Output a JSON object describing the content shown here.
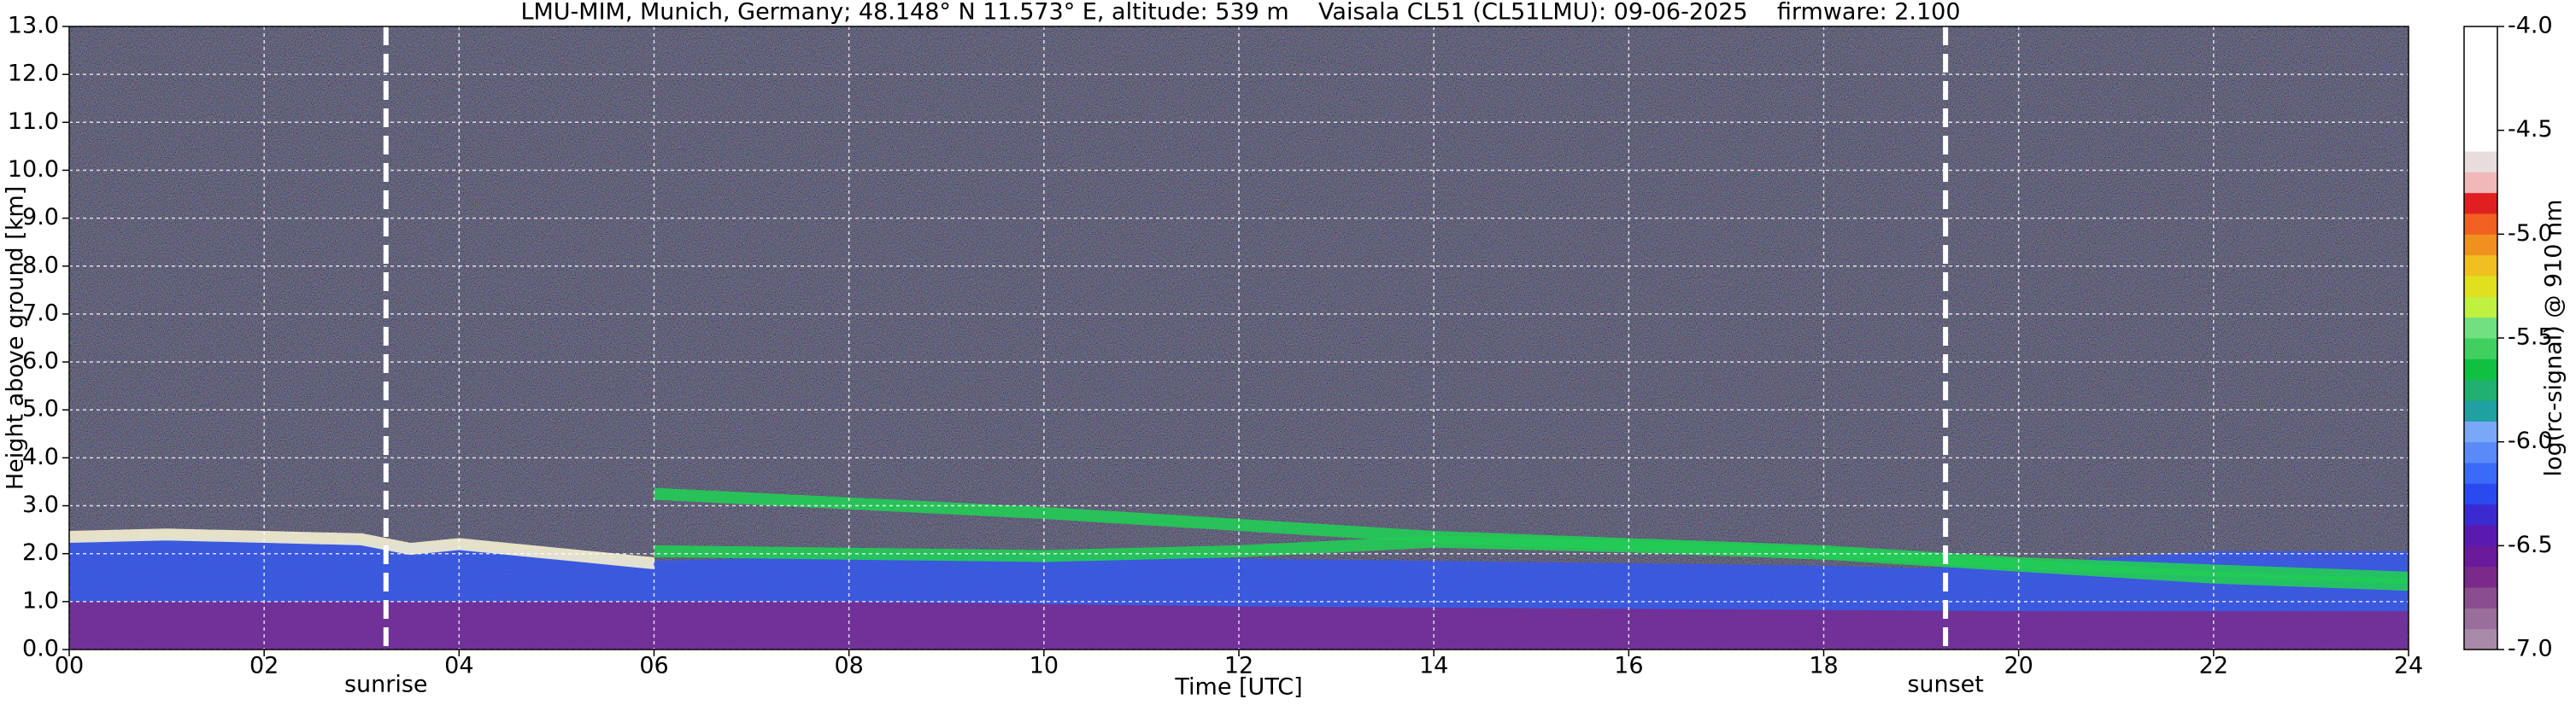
{
  "chart_data": {
    "type": "ceilometer",
    "title": "LMU-MIM, Munich, Germany; 48.148° N 11.573° E, altitude: 539 m    Vaisala CL51 (CL51LMU): 09-06-2025    firmware: 2.100",
    "x_label": "Time [UTC]",
    "y_label": "Height above ground [km]",
    "xlim": [
      0,
      24
    ],
    "ylim": [
      0,
      13
    ],
    "xticks": [
      {
        "value": 0,
        "label": "00"
      },
      {
        "value": 2,
        "label": "02"
      },
      {
        "value": 4,
        "label": "04"
      },
      {
        "value": 6,
        "label": "06"
      },
      {
        "value": 8,
        "label": "08"
      },
      {
        "value": 10,
        "label": "10"
      },
      {
        "value": 12,
        "label": "12"
      },
      {
        "value": 14,
        "label": "14"
      },
      {
        "value": 16,
        "label": "16"
      },
      {
        "value": 18,
        "label": "18"
      },
      {
        "value": 20,
        "label": "20"
      },
      {
        "value": 22,
        "label": "22"
      },
      {
        "value": 24,
        "label": "24"
      }
    ],
    "yticks": [
      {
        "value": 0,
        "label": "0.0"
      },
      {
        "value": 1,
        "label": "1.0"
      },
      {
        "value": 2,
        "label": "2.0"
      },
      {
        "value": 3,
        "label": "3.0"
      },
      {
        "value": 4,
        "label": "4.0"
      },
      {
        "value": 5,
        "label": "5.0"
      },
      {
        "value": 6,
        "label": "6.0"
      },
      {
        "value": 7,
        "label": "7.0"
      },
      {
        "value": 8,
        "label": "8.0"
      },
      {
        "value": 9,
        "label": "9.0"
      },
      {
        "value": 10,
        "label": "10.0"
      },
      {
        "value": 11,
        "label": "11.0"
      },
      {
        "value": 12,
        "label": "12.0"
      },
      {
        "value": 13,
        "label": "13.0"
      }
    ],
    "grid": true,
    "markers": [
      {
        "label": "sunrise",
        "x": 3.25
      },
      {
        "label": "sunset",
        "x": 19.25
      }
    ],
    "layers": [
      {
        "kind": "area",
        "color": "#3558ee",
        "x": [
          0,
          1,
          2,
          3,
          4,
          5,
          6,
          8,
          10,
          12,
          14,
          16,
          18,
          19,
          20,
          22,
          24
        ],
        "y": [
          2.3,
          2.35,
          2.3,
          2.25,
          2.15,
          2.0,
          1.85,
          1.95,
          1.95,
          1.9,
          1.85,
          1.8,
          1.75,
          1.7,
          1.8,
          2.05,
          2.05
        ]
      },
      {
        "kind": "area",
        "color": "#7a2a8c",
        "x": [
          0,
          4,
          8,
          10,
          12,
          16,
          20,
          24
        ],
        "y": [
          1.0,
          1.0,
          1.0,
          0.95,
          0.9,
          0.85,
          0.8,
          0.8
        ]
      },
      {
        "kind": "line",
        "color": "#f4f0d0",
        "x": [
          0,
          1,
          2,
          3,
          3.5,
          4,
          5,
          6
        ],
        "y": [
          2.35,
          2.4,
          2.35,
          2.3,
          2.1,
          2.2,
          2.0,
          1.8
        ]
      },
      {
        "kind": "line",
        "color": "#22cc55",
        "x": [
          6,
          8,
          10,
          12,
          14,
          16,
          18,
          20,
          22,
          24
        ],
        "y": [
          3.25,
          3.05,
          2.85,
          2.6,
          2.35,
          2.2,
          2.05,
          1.8,
          1.65,
          1.5
        ]
      },
      {
        "kind": "line",
        "color": "#22cc55",
        "x": [
          6,
          8,
          10,
          12,
          14,
          16,
          18,
          20,
          22,
          24
        ],
        "y": [
          2.05,
          2.0,
          1.95,
          2.05,
          2.25,
          2.15,
          2.0,
          1.75,
          1.5,
          1.35
        ]
      }
    ],
    "colorbar": {
      "label": "log(rc-signal) @ 910 nm",
      "lim": [
        -7,
        -4
      ],
      "ticks": [
        {
          "value": -4,
          "label": "-4.0"
        },
        {
          "value": -4.5,
          "label": "-4.5"
        },
        {
          "value": -5,
          "label": "-5.0"
        },
        {
          "value": -5.5,
          "label": "-5.5"
        },
        {
          "value": -6,
          "label": "-6.0"
        },
        {
          "value": -6.5,
          "label": "-6.5"
        },
        {
          "value": -7,
          "label": "-7.0"
        }
      ],
      "colors": [
        "#a88aa8",
        "#9a6e9a",
        "#8a4e8e",
        "#7a2a8a",
        "#6a1a9a",
        "#5a1ab0",
        "#3a2ad0",
        "#2a4af0",
        "#3a6af8",
        "#5a8af8",
        "#7aa8f8",
        "#20a0a0",
        "#20b070",
        "#10c040",
        "#40d060",
        "#70e080",
        "#c0f040",
        "#e0e020",
        "#f0c020",
        "#f09020",
        "#f06020",
        "#e02020",
        "#f0b8b8",
        "#e8dcdc",
        "#ffffff",
        "#ffffff",
        "#ffffff",
        "#ffffff",
        "#ffffff",
        "#ffffff"
      ]
    }
  }
}
